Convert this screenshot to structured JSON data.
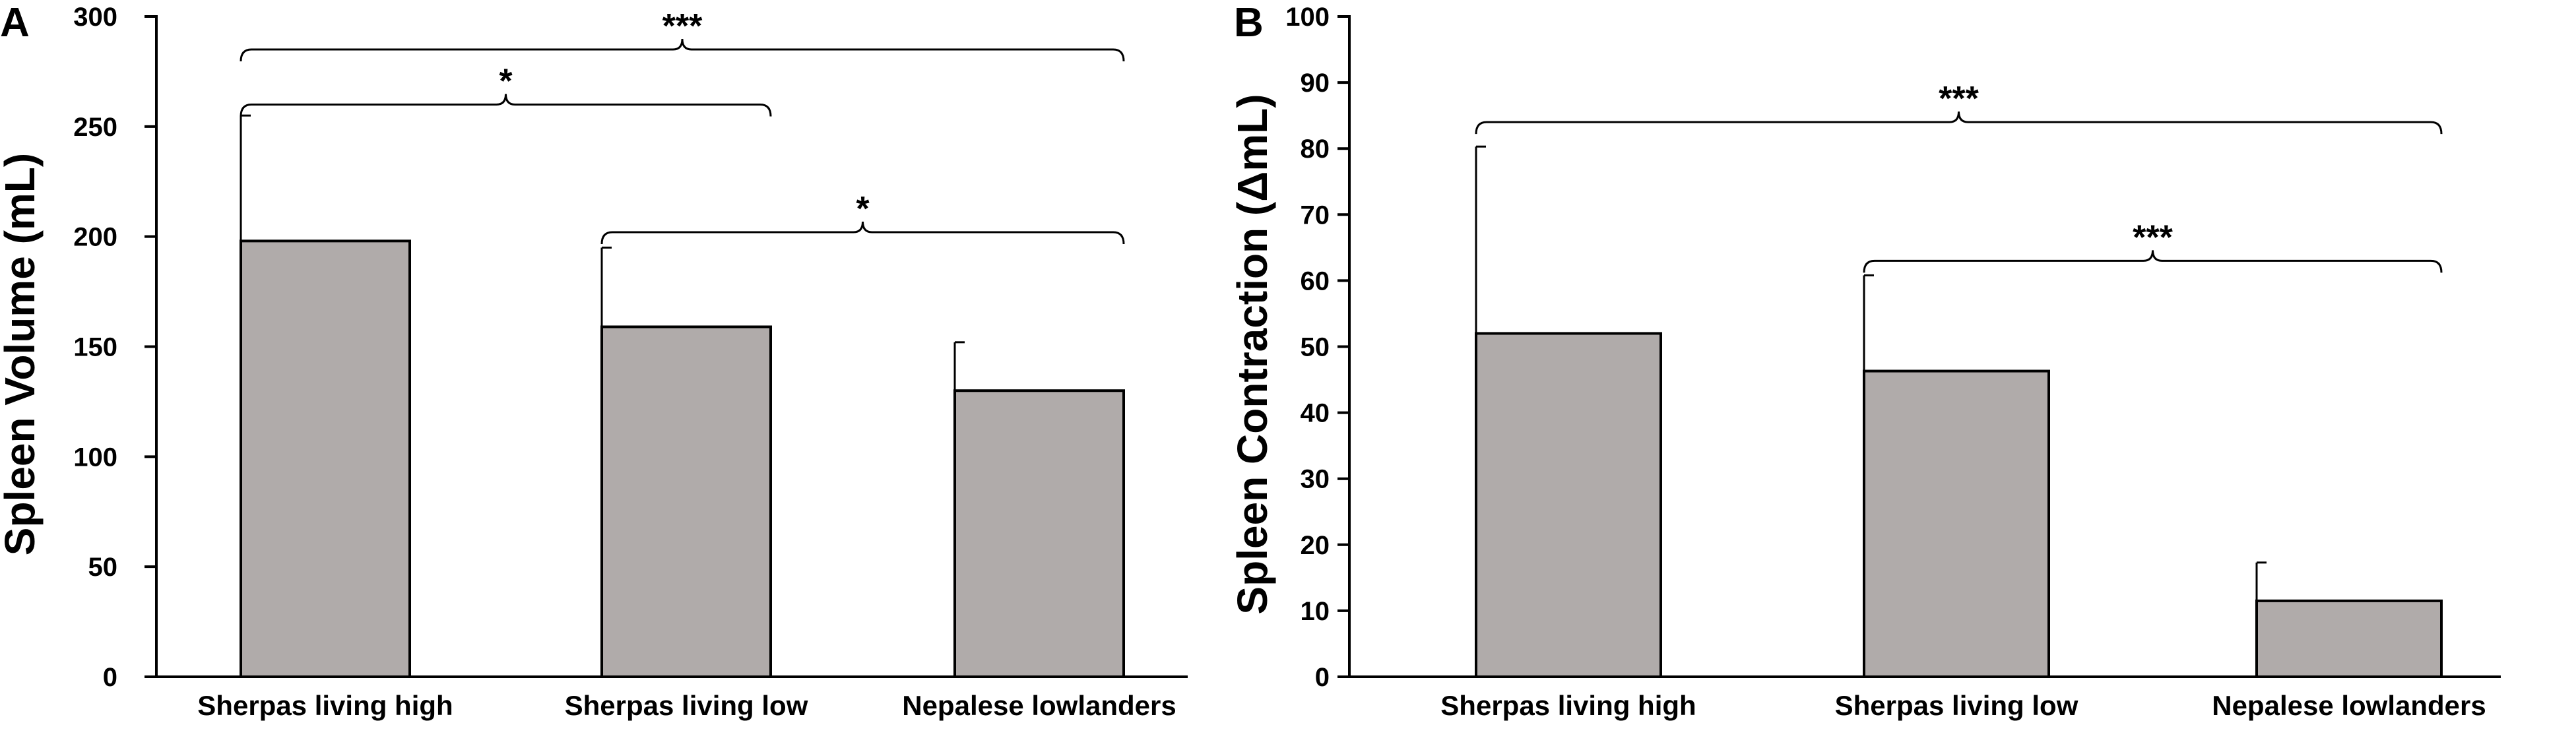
{
  "colors": {
    "bar_fill": "#b0abaa",
    "line": "#000000"
  },
  "chart_data": [
    {
      "type": "bar",
      "panel": "A",
      "title": "",
      "xlabel": "",
      "ylabel": "Spleen Volume (mL)",
      "ylim": [
        0,
        300
      ],
      "yticks": [
        0,
        50,
        100,
        150,
        200,
        250,
        300
      ],
      "grid": false,
      "categories": [
        "Sherpas living high",
        "Sherpas living low",
        "Nepalese lowlanders"
      ],
      "values": [
        198,
        159,
        130
      ],
      "error_upper": [
        57,
        36,
        22
      ],
      "significance": [
        {
          "from": 0,
          "to": 2,
          "label": "***",
          "y": 285
        },
        {
          "from": 0,
          "to": 1,
          "label": "*",
          "y": 260
        },
        {
          "from": 1,
          "to": 2,
          "label": "*",
          "y": 202
        }
      ]
    },
    {
      "type": "bar",
      "panel": "B",
      "title": "",
      "xlabel": "",
      "ylabel": "Spleen Contraction (ΔmL)",
      "ylim": [
        0,
        100
      ],
      "yticks": [
        0,
        10,
        20,
        30,
        40,
        50,
        60,
        70,
        80,
        90,
        100
      ],
      "grid": false,
      "categories": [
        "Sherpas living high",
        "Sherpas living low",
        "Nepalese lowlanders"
      ],
      "values": [
        52,
        46.3,
        11.5
      ],
      "error_upper": [
        28.3,
        14.5,
        5.8
      ],
      "significance": [
        {
          "from": 0,
          "to": 2,
          "label": "***",
          "y": 84
        },
        {
          "from": 1,
          "to": 2,
          "label": "***",
          "y": 63
        }
      ]
    }
  ]
}
